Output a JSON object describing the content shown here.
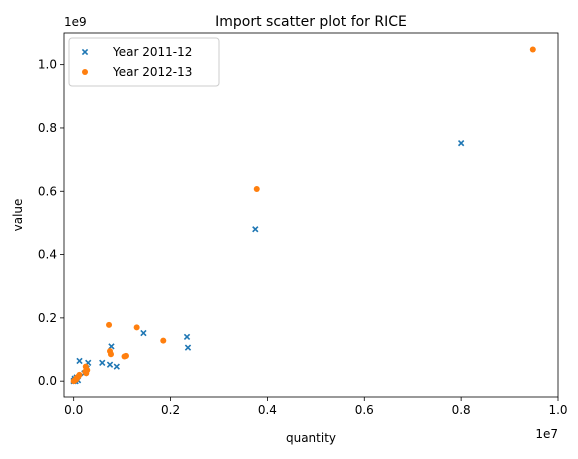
{
  "chart_data": {
    "type": "scatter",
    "title": "Import scatter plot for RICE",
    "xlabel": "quantity",
    "ylabel": "value",
    "x_offset_label": "1e7",
    "y_offset_label": "1e9",
    "x_ticks": [
      0.0,
      0.2,
      0.4,
      0.6,
      0.8,
      1.0
    ],
    "x_tick_labels": [
      "0.0",
      "0.2",
      "0.4",
      "0.6",
      "0.8",
      "1.0"
    ],
    "y_ticks": [
      0.0,
      0.2,
      0.4,
      0.6,
      0.8,
      1.0
    ],
    "y_tick_labels": [
      "0.0",
      "0.2",
      "0.4",
      "0.6",
      "0.8",
      "1.0"
    ],
    "xlim": [
      -0.02,
      1.0
    ],
    "ylim": [
      -0.05,
      1.1
    ],
    "grid": false,
    "legend_position": "top-left",
    "series": [
      {
        "name": "Year 2011-12",
        "marker": "x",
        "color": "#1f77b4",
        "x": [
          0.8,
          0.375,
          0.236,
          0.234,
          0.144,
          0.078,
          0.075,
          0.089,
          0.059,
          0.03,
          0.012,
          0.027,
          0.022,
          0.003,
          0.001,
          0.002,
          0.006,
          0.009,
          0.004,
          0.0,
          0.0
        ],
        "y": [
          0.752,
          0.48,
          0.106,
          0.14,
          0.152,
          0.11,
          0.052,
          0.046,
          0.058,
          0.058,
          0.064,
          0.04,
          0.025,
          0.005,
          0.002,
          0.008,
          0.012,
          0.003,
          0.0,
          0.001,
          0.0
        ]
      },
      {
        "name": "Year 2012-13",
        "marker": "o",
        "color": "#ff7f0e",
        "x": [
          0.948,
          0.378,
          0.185,
          0.13,
          0.073,
          0.108,
          0.105,
          0.075,
          0.077,
          0.025,
          0.028,
          0.024,
          0.026,
          0.012,
          0.01,
          0.008,
          0.006,
          0.005,
          0.003,
          0.002,
          0.001,
          0.0
        ],
        "y": [
          1.048,
          0.607,
          0.128,
          0.17,
          0.178,
          0.08,
          0.078,
          0.095,
          0.085,
          0.046,
          0.035,
          0.03,
          0.025,
          0.02,
          0.015,
          0.012,
          0.01,
          0.005,
          0.004,
          0.002,
          0.001,
          0.0
        ]
      }
    ]
  }
}
